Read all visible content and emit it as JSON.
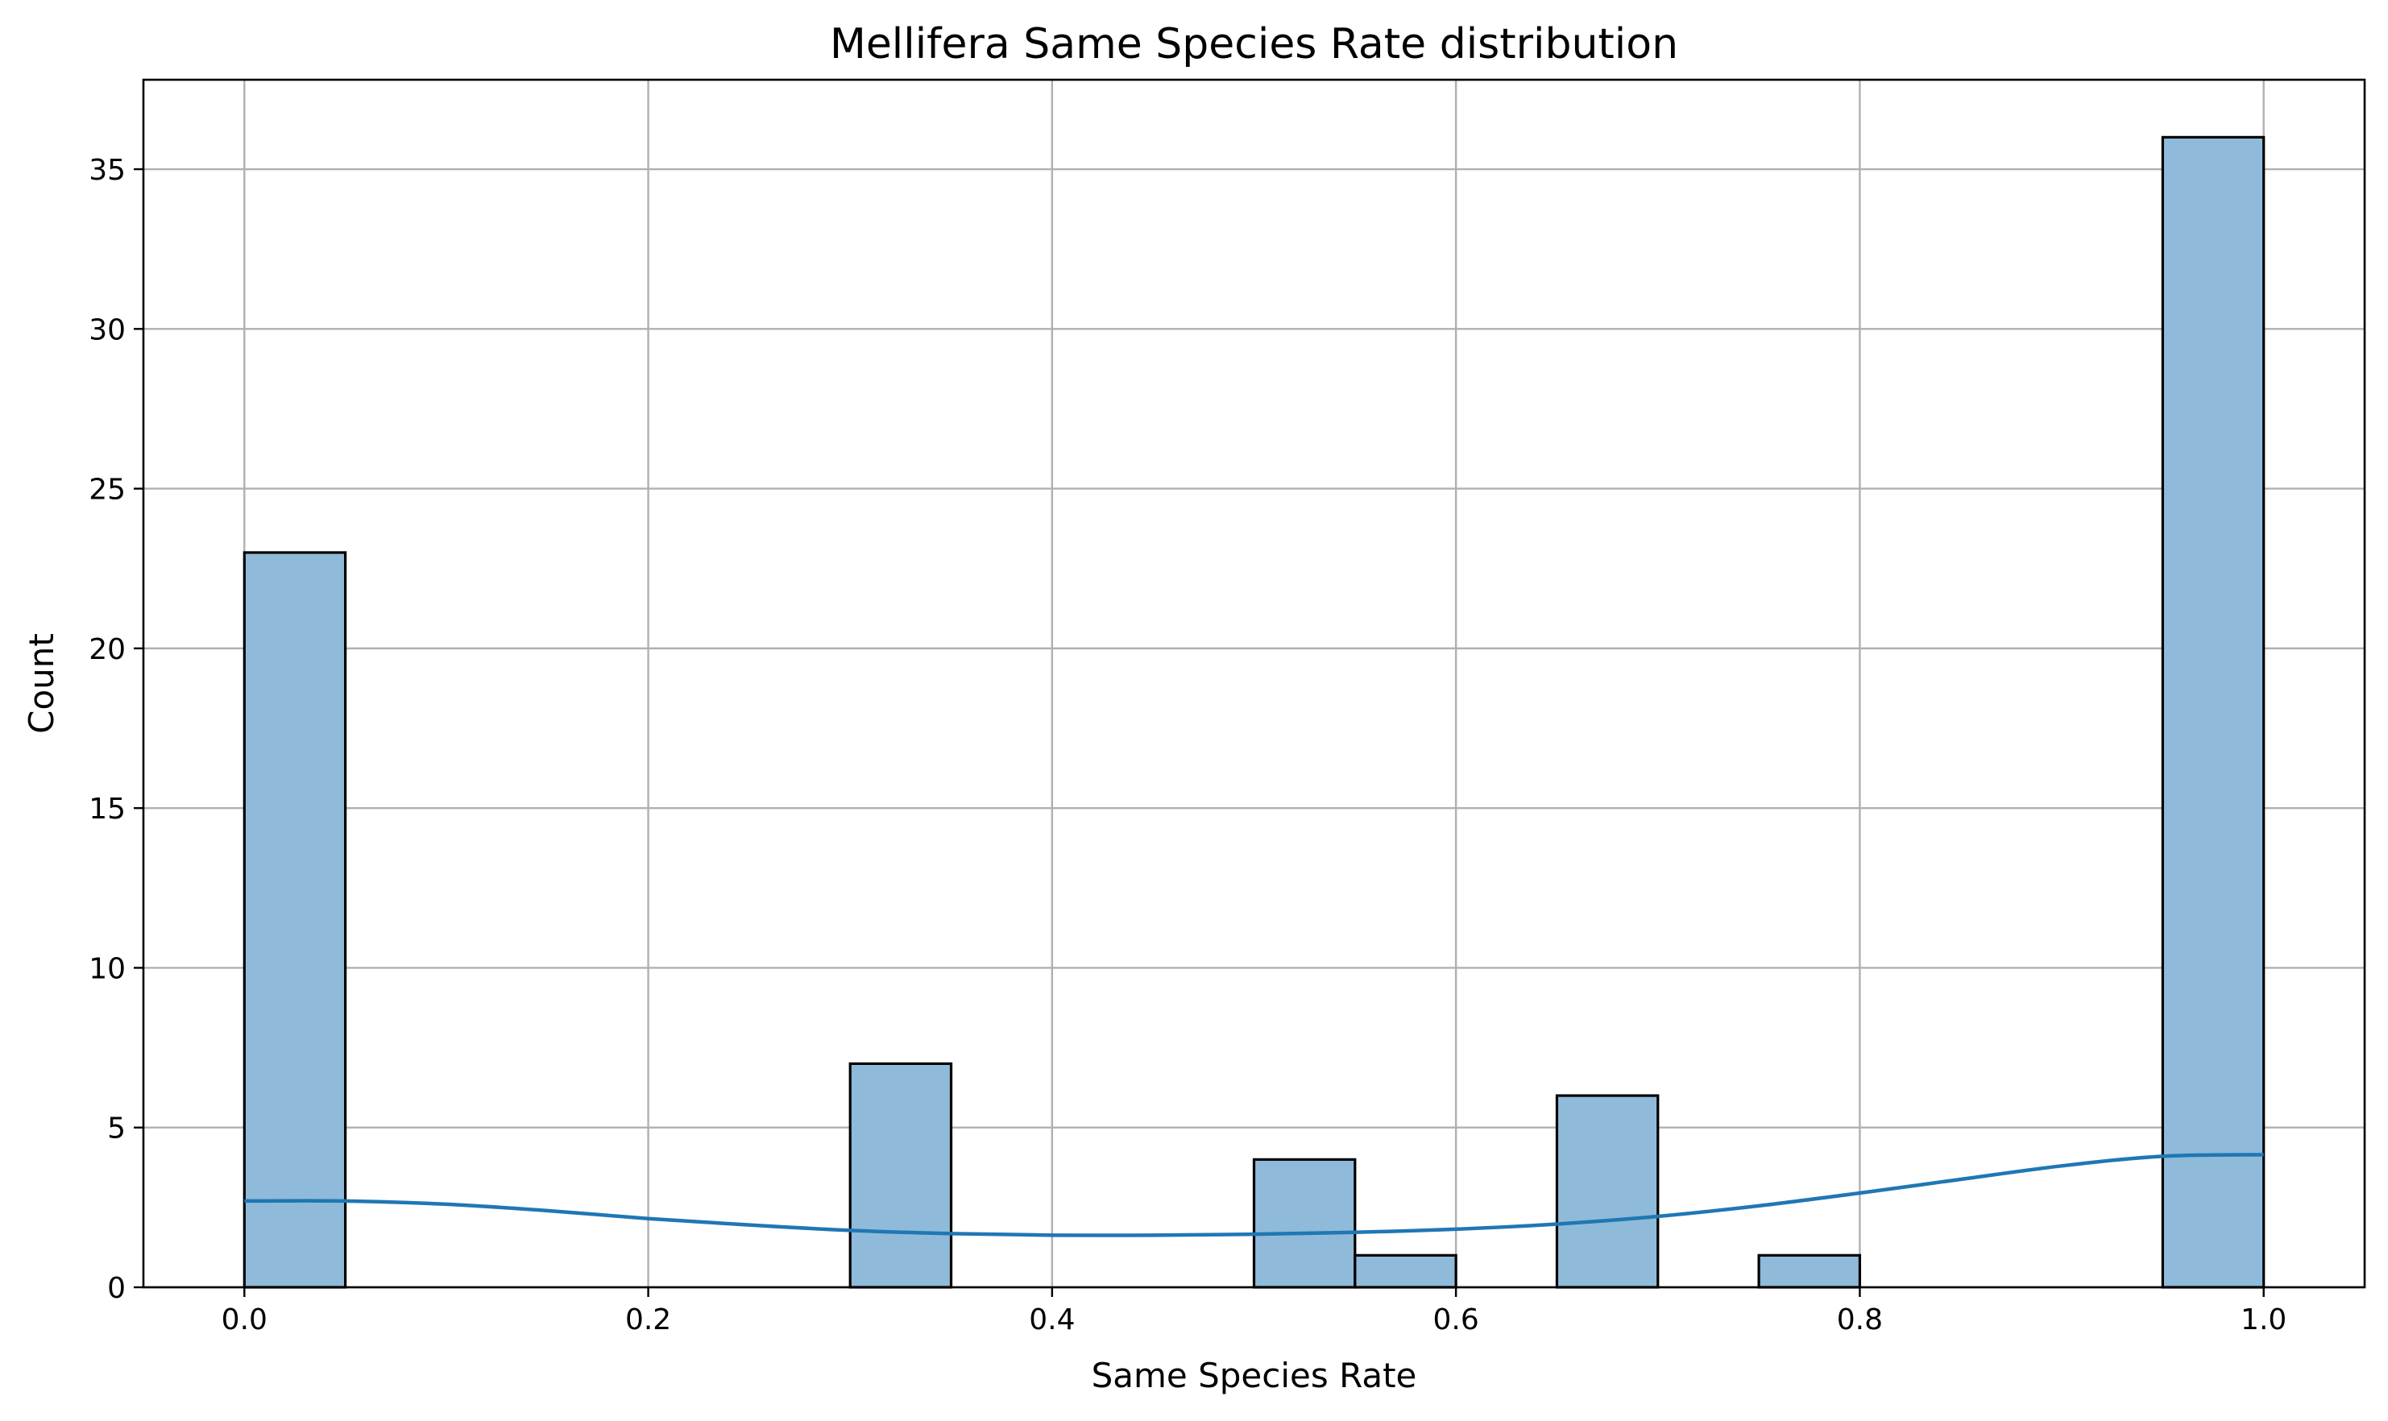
{
  "chart_data": {
    "type": "bar",
    "title": "Mellifera Same Species Rate distribution",
    "xlabel": "Same Species Rate",
    "ylabel": "Count",
    "bin_width": 0.05,
    "bins": [
      {
        "start": 0.0,
        "end": 0.05,
        "count": 23
      },
      {
        "start": 0.3,
        "end": 0.35,
        "count": 7
      },
      {
        "start": 0.5,
        "end": 0.55,
        "count": 4
      },
      {
        "start": 0.55,
        "end": 0.6,
        "count": 1
      },
      {
        "start": 0.65,
        "end": 0.7,
        "count": 6
      },
      {
        "start": 0.75,
        "end": 0.8,
        "count": 1
      },
      {
        "start": 0.95,
        "end": 1.0,
        "count": 36
      }
    ],
    "kde": {
      "x": [
        0.0,
        0.05,
        0.1,
        0.15,
        0.2,
        0.25,
        0.3,
        0.35,
        0.4,
        0.45,
        0.5,
        0.55,
        0.6,
        0.65,
        0.7,
        0.75,
        0.8,
        0.85,
        0.9,
        0.95,
        1.0
      ],
      "y": [
        2.7,
        2.7,
        2.6,
        2.4,
        2.15,
        1.95,
        1.78,
        1.68,
        1.63,
        1.63,
        1.66,
        1.72,
        1.82,
        1.98,
        2.22,
        2.55,
        2.95,
        3.38,
        3.8,
        4.1,
        4.15
      ]
    },
    "xlim": [
      -0.05,
      1.05
    ],
    "ylim": [
      0,
      37.8
    ],
    "xticks": [
      0.0,
      0.2,
      0.4,
      0.6,
      0.8,
      1.0
    ],
    "xtick_labels": [
      "0.0",
      "0.2",
      "0.4",
      "0.6",
      "0.8",
      "1.0"
    ],
    "yticks": [
      0,
      5,
      10,
      15,
      20,
      25,
      30,
      35
    ],
    "ytick_labels": [
      "0",
      "5",
      "10",
      "15",
      "20",
      "25",
      "30",
      "35"
    ],
    "grid": true,
    "colors": {
      "bar_fill": "#8fbad9",
      "bar_edge": "#000000",
      "kde": "#1f77b4",
      "grid": "#b0b0b0"
    }
  }
}
